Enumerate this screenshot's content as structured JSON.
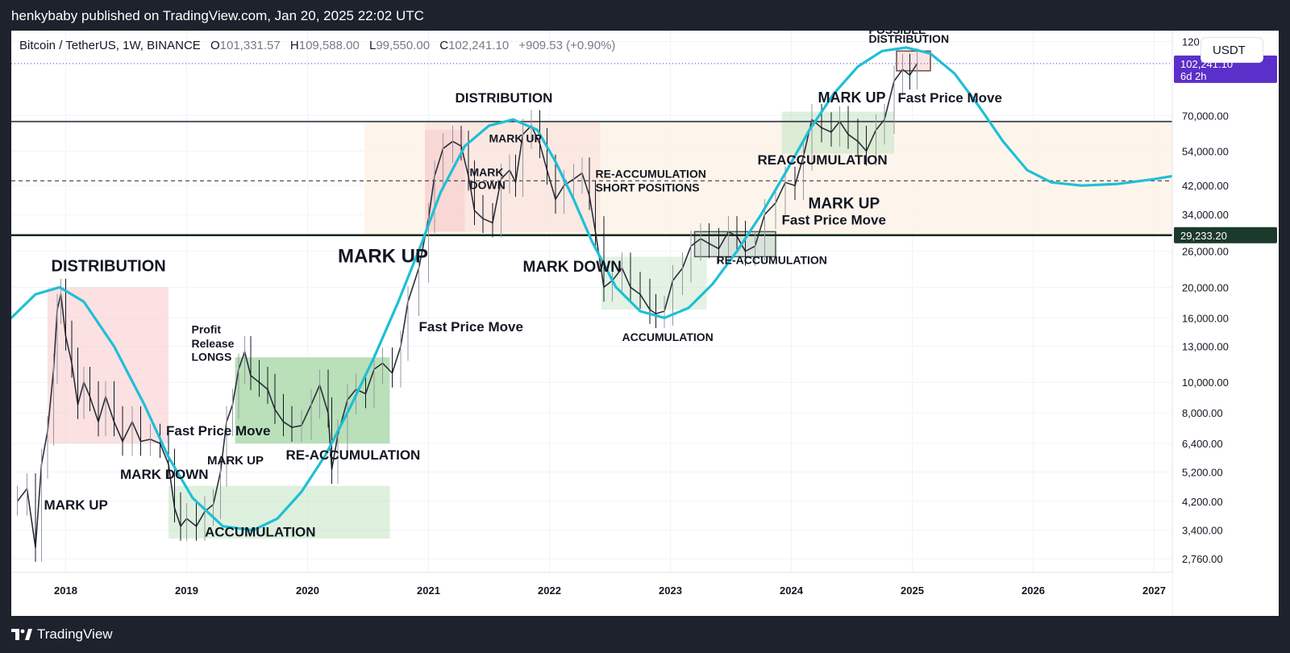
{
  "header": {
    "published": "henkybaby published on TradingView.com, Jan 20, 2025 22:02 UTC"
  },
  "footer": {
    "brand": "TradingView"
  },
  "legend": {
    "symbol": "Bitcoin / TetherUS, 1W, BINANCE",
    "o_label": "O",
    "o_value": "101,331.57",
    "h_label": "H",
    "h_value": "109,588.00",
    "l_label": "L",
    "l_value": "99,550.00",
    "c_label": "C",
    "c_value": "102,241.10",
    "change": "+909.53 (+0.90%)"
  },
  "currency": "USDT",
  "price_badge": {
    "price": "102,241.10",
    "countdown": "6d 2h",
    "color": "#5b2fc9"
  },
  "level_badge": {
    "price": "29,233.20",
    "color": "#1b3a2b"
  },
  "colors": {
    "curve": "#1fbfd6",
    "distribution_zone": "#f8c9c9",
    "accumulation_zone": "#c2e3c2",
    "range_band": "#fdf3e7"
  },
  "chart_data": {
    "type": "line",
    "title": "",
    "y_scale": "log",
    "ylim": [
      2500,
      130000
    ],
    "xlim": [
      2017.55,
      2027.15
    ],
    "x_ticks": [
      {
        "value": 2018,
        "label": "2018"
      },
      {
        "value": 2019,
        "label": "2019"
      },
      {
        "value": 2020,
        "label": "2020"
      },
      {
        "value": 2021,
        "label": "2021"
      },
      {
        "value": 2022,
        "label": "2022"
      },
      {
        "value": 2023,
        "label": "2023"
      },
      {
        "value": 2024,
        "label": "2024"
      },
      {
        "value": 2025,
        "label": "2025"
      },
      {
        "value": 2026,
        "label": "2026"
      },
      {
        "value": 2027,
        "label": "2027"
      }
    ],
    "y_ticks": [
      {
        "value": 120000,
        "label": "120,000.00"
      },
      {
        "value": 70000,
        "label": "70,000.00"
      },
      {
        "value": 54000,
        "label": "54,000.00"
      },
      {
        "value": 42000,
        "label": "42,000.00"
      },
      {
        "value": 34000,
        "label": "34,000.00"
      },
      {
        "value": 26000,
        "label": "26,000.00"
      },
      {
        "value": 20000,
        "label": "20,000.00"
      },
      {
        "value": 16000,
        "label": "16,000.00"
      },
      {
        "value": 13000,
        "label": "13,000.00"
      },
      {
        "value": 10000,
        "label": "10,000.00"
      },
      {
        "value": 8000,
        "label": "8,000.00"
      },
      {
        "value": 6400,
        "label": "6,400.00"
      },
      {
        "value": 5200,
        "label": "5,200.00"
      },
      {
        "value": 4200,
        "label": "4,200.00"
      },
      {
        "value": 3400,
        "label": "3,400.00"
      },
      {
        "value": 2760,
        "label": "2,760.00"
      }
    ],
    "price_line": [
      [
        2017.6,
        4200
      ],
      [
        2017.68,
        4600
      ],
      [
        2017.75,
        3000
      ],
      [
        2017.8,
        5500
      ],
      [
        2017.85,
        7000
      ],
      [
        2017.9,
        11000
      ],
      [
        2017.93,
        17000
      ],
      [
        2017.96,
        19000
      ],
      [
        2018.0,
        14000
      ],
      [
        2018.05,
        11500
      ],
      [
        2018.1,
        8500
      ],
      [
        2018.15,
        10000
      ],
      [
        2018.2,
        9000
      ],
      [
        2018.27,
        7500
      ],
      [
        2018.33,
        9000
      ],
      [
        2018.4,
        7500
      ],
      [
        2018.47,
        6500
      ],
      [
        2018.55,
        7500
      ],
      [
        2018.62,
        6500
      ],
      [
        2018.7,
        6600
      ],
      [
        2018.78,
        6400
      ],
      [
        2018.85,
        5500
      ],
      [
        2018.9,
        4000
      ],
      [
        2018.95,
        3500
      ],
      [
        2019.0,
        3700
      ],
      [
        2019.08,
        3500
      ],
      [
        2019.15,
        3900
      ],
      [
        2019.22,
        4100
      ],
      [
        2019.28,
        5200
      ],
      [
        2019.33,
        7500
      ],
      [
        2019.38,
        8500
      ],
      [
        2019.43,
        11000
      ],
      [
        2019.48,
        12500
      ],
      [
        2019.53,
        10500
      ],
      [
        2019.6,
        10000
      ],
      [
        2019.67,
        9500
      ],
      [
        2019.73,
        8200
      ],
      [
        2019.8,
        7500
      ],
      [
        2019.87,
        7200
      ],
      [
        2019.95,
        7300
      ],
      [
        2020.03,
        8500
      ],
      [
        2020.1,
        9800
      ],
      [
        2020.17,
        8000
      ],
      [
        2020.2,
        5300
      ],
      [
        2020.25,
        6800
      ],
      [
        2020.33,
        8800
      ],
      [
        2020.4,
        9500
      ],
      [
        2020.48,
        9200
      ],
      [
        2020.55,
        11000
      ],
      [
        2020.62,
        11500
      ],
      [
        2020.7,
        10700
      ],
      [
        2020.77,
        13000
      ],
      [
        2020.83,
        18000
      ],
      [
        2020.92,
        23000
      ],
      [
        2021.0,
        33000
      ],
      [
        2021.05,
        45000
      ],
      [
        2021.12,
        55000
      ],
      [
        2021.2,
        58000
      ],
      [
        2021.27,
        56000
      ],
      [
        2021.33,
        45000
      ],
      [
        2021.38,
        35000
      ],
      [
        2021.45,
        33000
      ],
      [
        2021.53,
        32000
      ],
      [
        2021.6,
        44000
      ],
      [
        2021.67,
        47000
      ],
      [
        2021.72,
        43000
      ],
      [
        2021.78,
        61000
      ],
      [
        2021.85,
        65000
      ],
      [
        2021.92,
        57000
      ],
      [
        2021.98,
        47000
      ],
      [
        2022.05,
        38000
      ],
      [
        2022.12,
        42000
      ],
      [
        2022.2,
        44000
      ],
      [
        2022.27,
        46000
      ],
      [
        2022.33,
        39000
      ],
      [
        2022.38,
        30000
      ],
      [
        2022.45,
        20000
      ],
      [
        2022.52,
        21000
      ],
      [
        2022.6,
        23000
      ],
      [
        2022.67,
        20000
      ],
      [
        2022.75,
        19000
      ],
      [
        2022.83,
        17000
      ],
      [
        2022.88,
        16500
      ],
      [
        2022.95,
        16800
      ],
      [
        2023.02,
        21000
      ],
      [
        2023.1,
        23000
      ],
      [
        2023.17,
        27000
      ],
      [
        2023.25,
        28500
      ],
      [
        2023.32,
        27500
      ],
      [
        2023.4,
        26500
      ],
      [
        2023.48,
        30000
      ],
      [
        2023.55,
        29000
      ],
      [
        2023.62,
        26000
      ],
      [
        2023.7,
        27000
      ],
      [
        2023.78,
        34000
      ],
      [
        2023.87,
        37000
      ],
      [
        2023.95,
        43000
      ],
      [
        2024.03,
        42000
      ],
      [
        2024.1,
        52000
      ],
      [
        2024.17,
        68000
      ],
      [
        2024.25,
        64000
      ],
      [
        2024.33,
        62000
      ],
      [
        2024.4,
        67000
      ],
      [
        2024.47,
        61000
      ],
      [
        2024.55,
        58000
      ],
      [
        2024.62,
        54000
      ],
      [
        2024.7,
        63000
      ],
      [
        2024.77,
        68000
      ],
      [
        2024.85,
        90000
      ],
      [
        2024.92,
        98000
      ],
      [
        2024.98,
        94000
      ],
      [
        2025.04,
        102241
      ]
    ],
    "cycle_curve": [
      [
        2017.55,
        16000
      ],
      [
        2017.75,
        19000
      ],
      [
        2017.95,
        20000
      ],
      [
        2018.15,
        18000
      ],
      [
        2018.4,
        13000
      ],
      [
        2018.65,
        8500
      ],
      [
        2018.85,
        5800
      ],
      [
        2019.05,
        4300
      ],
      [
        2019.3,
        3500
      ],
      [
        2019.55,
        3400
      ],
      [
        2019.75,
        3700
      ],
      [
        2019.95,
        4500
      ],
      [
        2020.15,
        5900
      ],
      [
        2020.35,
        8300
      ],
      [
        2020.55,
        12000
      ],
      [
        2020.75,
        18000
      ],
      [
        2020.95,
        28000
      ],
      [
        2021.1,
        40000
      ],
      [
        2021.3,
        56000
      ],
      [
        2021.5,
        65000
      ],
      [
        2021.7,
        68000
      ],
      [
        2021.9,
        63000
      ],
      [
        2022.05,
        50000
      ],
      [
        2022.2,
        38000
      ],
      [
        2022.35,
        28000
      ],
      [
        2022.55,
        20000
      ],
      [
        2022.75,
        16800
      ],
      [
        2022.95,
        16000
      ],
      [
        2023.15,
        17200
      ],
      [
        2023.35,
        20500
      ],
      [
        2023.55,
        26000
      ],
      [
        2023.75,
        34000
      ],
      [
        2023.95,
        46000
      ],
      [
        2024.15,
        63000
      ],
      [
        2024.35,
        82000
      ],
      [
        2024.55,
        100000
      ],
      [
        2024.75,
        112000
      ],
      [
        2024.95,
        115000
      ],
      [
        2025.15,
        110000
      ],
      [
        2025.35,
        95000
      ],
      [
        2025.55,
        75000
      ],
      [
        2025.75,
        58000
      ],
      [
        2025.95,
        47000
      ],
      [
        2026.15,
        43000
      ],
      [
        2026.4,
        42000
      ],
      [
        2026.7,
        42500
      ],
      [
        2027.0,
        44000
      ],
      [
        2027.15,
        45000
      ]
    ],
    "zones": [
      {
        "kind": "distribution",
        "x0": 2017.85,
        "x1": 2018.85,
        "y0": 6400,
        "y1": 20000
      },
      {
        "kind": "accumulation",
        "x0": 2018.85,
        "x1": 2020.68,
        "y0": 3200,
        "y1": 4700
      },
      {
        "kind": "accumulation_strong",
        "x0": 2019.4,
        "x1": 2020.68,
        "y0": 6400,
        "y1": 12000
      },
      {
        "kind": "distribution",
        "x0": 2020.97,
        "x1": 2021.3,
        "y0": 30000,
        "y1": 63000
      },
      {
        "kind": "distribution_light",
        "x0": 2020.97,
        "x1": 2022.42,
        "y0": 30000,
        "y1": 67000
      },
      {
        "kind": "accumulation_light",
        "x0": 2022.43,
        "x1": 2023.3,
        "y0": 17000,
        "y1": 25000
      },
      {
        "kind": "accumulation_box",
        "x0": 2023.2,
        "x1": 2023.87,
        "y0": 25000,
        "y1": 30000
      },
      {
        "kind": "accumulation",
        "x0": 2023.92,
        "x1": 2024.85,
        "y0": 53000,
        "y1": 72000
      },
      {
        "kind": "distribution_box",
        "x0": 2024.87,
        "x1": 2025.15,
        "y0": 97000,
        "y1": 112000
      }
    ],
    "range_band": {
      "x0": 2020.47,
      "x1": 2027.15,
      "y0": 29233,
      "y1": 67000
    },
    "levels": [
      {
        "value": 29233.2,
        "style": "solid-dark"
      },
      {
        "value": 67000,
        "style": "solid"
      },
      {
        "value": 43500,
        "style": "dashed"
      },
      {
        "value": 102241.1,
        "style": "dotted"
      }
    ],
    "annotations": [
      {
        "text": "DISTRIBUTION",
        "x": 2017.88,
        "y": 22500,
        "size": 20
      },
      {
        "text": "MARK UP",
        "x": 2017.82,
        "y": 3950,
        "size": 17
      },
      {
        "text": "MARK DOWN",
        "x": 2018.45,
        "y": 4950,
        "size": 17
      },
      {
        "text": "ACCUMULATION",
        "x": 2019.15,
        "y": 3250,
        "size": 17
      },
      {
        "text": "Fast Price Move",
        "x": 2018.83,
        "y": 6800,
        "size": 17
      },
      {
        "text": "MARK UP",
        "x": 2019.17,
        "y": 5500,
        "size": 15
      },
      {
        "text": "Profit",
        "x": 2019.04,
        "y": 14300,
        "size": 14
      },
      {
        "text": "Release",
        "x": 2019.04,
        "y": 12900,
        "size": 14
      },
      {
        "text": "LONGS",
        "x": 2019.04,
        "y": 11700,
        "size": 14
      },
      {
        "text": "RE-ACCUMULATION",
        "x": 2019.82,
        "y": 5700,
        "size": 17
      },
      {
        "text": "MARK UP",
        "x": 2020.25,
        "y": 24000,
        "size": 24
      },
      {
        "text": "Fast Price Move",
        "x": 2020.92,
        "y": 14500,
        "size": 17
      },
      {
        "text": "DISTRIBUTION",
        "x": 2021.22,
        "y": 77000,
        "size": 17
      },
      {
        "text": "MARK UP",
        "x": 2021.5,
        "y": 57500,
        "size": 14
      },
      {
        "text": "MARK",
        "x": 2021.34,
        "y": 45000,
        "size": 14
      },
      {
        "text": "DOWN",
        "x": 2021.34,
        "y": 41000,
        "size": 14
      },
      {
        "text": "RE-ACCUMULATION",
        "x": 2022.38,
        "y": 44500,
        "size": 14
      },
      {
        "text": "SHORT POSITIONS",
        "x": 2022.38,
        "y": 40200,
        "size": 14
      },
      {
        "text": "MARK DOWN",
        "x": 2021.78,
        "y": 22400,
        "size": 19
      },
      {
        "text": "ACCUMULATION",
        "x": 2022.6,
        "y": 13500,
        "size": 14
      },
      {
        "text": "RE-ACCUMULATION",
        "x": 2023.38,
        "y": 23700,
        "size": 14
      },
      {
        "text": "MARK UP",
        "x": 2024.22,
        "y": 77000,
        "size": 18
      },
      {
        "text": "REACCUMULATION",
        "x": 2023.72,
        "y": 49000,
        "size": 17
      },
      {
        "text": "MARK UP",
        "x": 2024.14,
        "y": 35600,
        "size": 19
      },
      {
        "text": "Fast Price Move",
        "x": 2023.92,
        "y": 31600,
        "size": 17
      },
      {
        "text": "POSSIBLE",
        "x": 2024.64,
        "y": 127000,
        "size": 14
      },
      {
        "text": "DISTRIBUTION",
        "x": 2024.64,
        "y": 119000,
        "size": 14
      },
      {
        "text": "Fast Price Move",
        "x": 2024.88,
        "y": 77000,
        "size": 17
      }
    ]
  }
}
